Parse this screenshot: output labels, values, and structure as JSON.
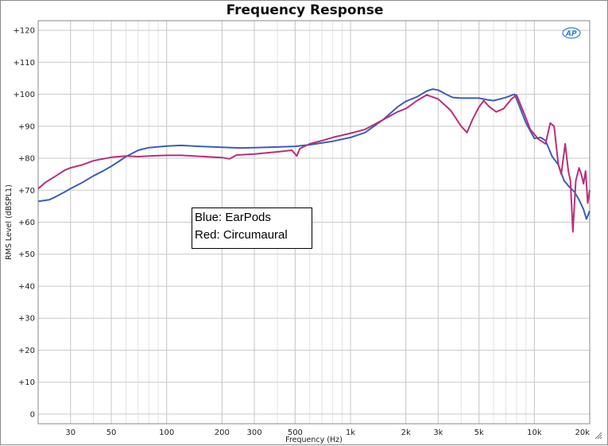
{
  "chart_data": {
    "type": "line",
    "title": "Frequency Response",
    "xlabel": "Frequency (Hz)",
    "ylabel": "RMS Level (dBSPL1)",
    "x_scale": "log",
    "xlim": [
      20,
      20000
    ],
    "ylim": [
      -3,
      123
    ],
    "x_ticks": [
      30,
      50,
      100,
      200,
      300,
      500,
      1000,
      2000,
      3000,
      5000,
      10000,
      20000
    ],
    "x_tick_labels": [
      "30",
      "50",
      "100",
      "200",
      "300",
      "500",
      "1k",
      "2k",
      "3k",
      "5k",
      "10k",
      "20k"
    ],
    "y_ticks": [
      0,
      10,
      20,
      30,
      40,
      50,
      60,
      70,
      80,
      90,
      100,
      110,
      120
    ],
    "y_tick_labels": [
      "0",
      "+10",
      "+20",
      "+30",
      "+40",
      "+50",
      "+60",
      "+70",
      "+80",
      "+90",
      "+100",
      "+110",
      "+120"
    ],
    "grid": true,
    "legend_box": [
      "Blue: EarPods",
      "Red: Circumaural"
    ],
    "series": [
      {
        "color": "#3a5fb8",
        "points": [
          [
            20,
            66.5
          ],
          [
            23,
            67
          ],
          [
            25,
            68
          ],
          [
            28,
            69.5
          ],
          [
            30,
            70.5
          ],
          [
            35,
            72.5
          ],
          [
            40,
            74.5
          ],
          [
            45,
            76
          ],
          [
            50,
            77.5
          ],
          [
            55,
            79
          ],
          [
            60,
            80.5
          ],
          [
            70,
            82.5
          ],
          [
            80,
            83.3
          ],
          [
            100,
            83.8
          ],
          [
            120,
            84
          ],
          [
            150,
            83.7
          ],
          [
            200,
            83.4
          ],
          [
            250,
            83.2
          ],
          [
            300,
            83.3
          ],
          [
            400,
            83.5
          ],
          [
            500,
            83.7
          ],
          [
            600,
            84.2
          ],
          [
            700,
            84.8
          ],
          [
            800,
            85.3
          ],
          [
            1000,
            86.5
          ],
          [
            1200,
            88
          ],
          [
            1500,
            92
          ],
          [
            1800,
            96
          ],
          [
            2000,
            97.8
          ],
          [
            2300,
            99.2
          ],
          [
            2600,
            101
          ],
          [
            2800,
            101.6
          ],
          [
            3000,
            101.3
          ],
          [
            3300,
            100
          ],
          [
            3600,
            99
          ],
          [
            4000,
            98.8
          ],
          [
            5000,
            98.8
          ],
          [
            5500,
            98.3
          ],
          [
            6000,
            98
          ],
          [
            7000,
            99
          ],
          [
            7800,
            100
          ],
          [
            8200,
            97
          ],
          [
            9000,
            91
          ],
          [
            10000,
            86.2
          ],
          [
            10800,
            86.5
          ],
          [
            11500,
            85.5
          ],
          [
            12500,
            80.5
          ],
          [
            13500,
            78
          ],
          [
            14500,
            73
          ],
          [
            15500,
            71
          ],
          [
            16500,
            69.5
          ],
          [
            17500,
            67
          ],
          [
            18500,
            64
          ],
          [
            19200,
            61
          ],
          [
            20000,
            63.5
          ]
        ]
      },
      {
        "color": "#b8307a",
        "points": [
          [
            20,
            70.5
          ],
          [
            22,
            72.5
          ],
          [
            25,
            74.5
          ],
          [
            28,
            76.3
          ],
          [
            30,
            77
          ],
          [
            35,
            78
          ],
          [
            40,
            79.2
          ],
          [
            50,
            80.3
          ],
          [
            60,
            80.7
          ],
          [
            70,
            80.5
          ],
          [
            80,
            80.7
          ],
          [
            100,
            80.9
          ],
          [
            120,
            80.9
          ],
          [
            150,
            80.6
          ],
          [
            200,
            80.2
          ],
          [
            220,
            79.8
          ],
          [
            240,
            81
          ],
          [
            300,
            81.3
          ],
          [
            400,
            82
          ],
          [
            480,
            82.5
          ],
          [
            510,
            80.7
          ],
          [
            530,
            83
          ],
          [
            600,
            84.5
          ],
          [
            700,
            85.5
          ],
          [
            800,
            86.5
          ],
          [
            1000,
            87.8
          ],
          [
            1200,
            89
          ],
          [
            1500,
            92
          ],
          [
            1800,
            94.5
          ],
          [
            2000,
            95.5
          ],
          [
            2300,
            98
          ],
          [
            2600,
            99.8
          ],
          [
            3000,
            98.5
          ],
          [
            3500,
            95
          ],
          [
            4000,
            90
          ],
          [
            4300,
            88
          ],
          [
            4600,
            92
          ],
          [
            5000,
            96
          ],
          [
            5300,
            98
          ],
          [
            5700,
            96
          ],
          [
            6200,
            94.5
          ],
          [
            6800,
            95.5
          ],
          [
            7500,
            98.5
          ],
          [
            8000,
            99.8
          ],
          [
            8800,
            94
          ],
          [
            9500,
            89
          ],
          [
            10500,
            86
          ],
          [
            11500,
            84.5
          ],
          [
            12200,
            91
          ],
          [
            12800,
            90
          ],
          [
            13500,
            78
          ],
          [
            14000,
            75
          ],
          [
            14700,
            84.5
          ],
          [
            15300,
            76
          ],
          [
            15700,
            73
          ],
          [
            16200,
            57
          ],
          [
            16800,
            73
          ],
          [
            17500,
            77
          ],
          [
            18000,
            75
          ],
          [
            18500,
            72
          ],
          [
            19000,
            76
          ],
          [
            19500,
            66
          ],
          [
            20000,
            70
          ]
        ]
      }
    ]
  }
}
